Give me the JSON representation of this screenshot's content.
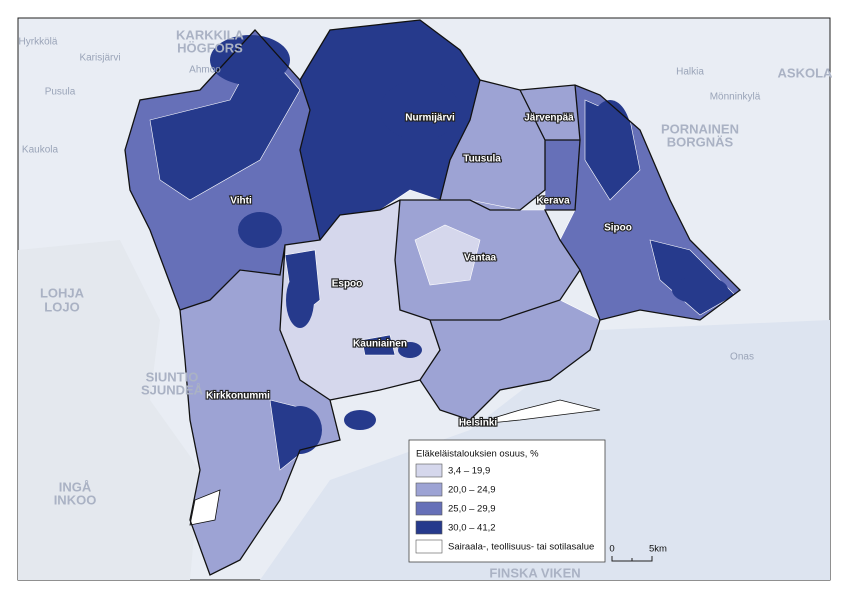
{
  "map": {
    "municipalities": [
      {
        "label": "Nurmijärvi",
        "class": 3
      },
      {
        "label": "Järvenpää",
        "class": 1
      },
      {
        "label": "Tuusula",
        "class": 1
      },
      {
        "label": "Kerava",
        "class": 2
      },
      {
        "label": "Vihti",
        "class": 2
      },
      {
        "label": "Sipoo",
        "class": 2
      },
      {
        "label": "Vantaa",
        "class": 1
      },
      {
        "label": "Espoo",
        "class": 0
      },
      {
        "label": "Kauniainen",
        "class": 3
      },
      {
        "label": "Kirkkonummi",
        "class": 1
      },
      {
        "label": "Helsinki",
        "class": 1
      }
    ],
    "legend": {
      "title": "Eläkeläistalouksien osuus, %",
      "items": [
        {
          "label": "3,4 – 19,9",
          "color": "#d5d7ec"
        },
        {
          "label": "20,0 – 24,9",
          "color": "#9da3d4"
        },
        {
          "label": "25,0 – 29,9",
          "color": "#6670b8"
        },
        {
          "label": "30,0 – 41,2",
          "color": "#263a8c"
        },
        {
          "label": "Sairaala-, teollisuus- tai sotilasalue",
          "color": "#ffffff"
        }
      ]
    },
    "scale_bar": {
      "labels": [
        "0",
        "5km"
      ]
    },
    "basemap_labels": [
      "KARKKILA",
      "HÖGFORS",
      "Ahmoo",
      "Hyrkkölä",
      "Karisjärvi",
      "Pusula",
      "Kaukola",
      "ASKOLA",
      "PORNAINEN",
      "BORGNÄS",
      "Halkia",
      "Mönninkylä",
      "LOHJA",
      "LOJO",
      "SIUNTIO",
      "SJUNDEÅ",
      "INGÅ",
      "INKOO",
      "FINSKA VIKEN",
      "Onas"
    ]
  }
}
